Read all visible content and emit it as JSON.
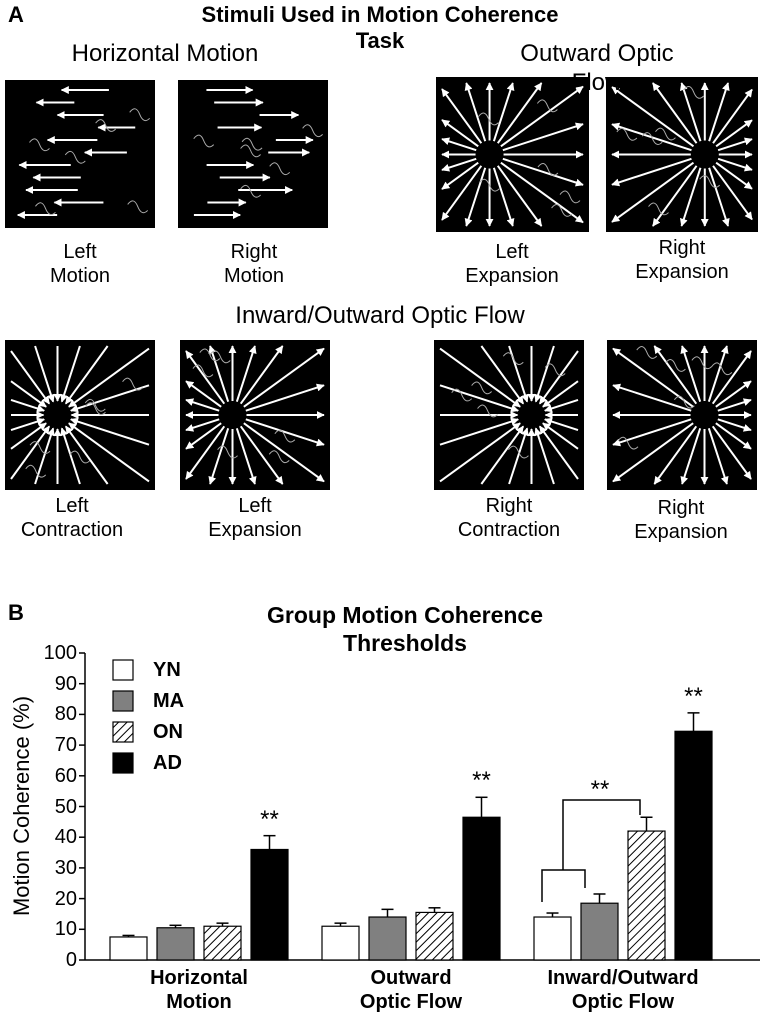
{
  "panel_a": {
    "label": "A",
    "title": "Stimuli Used in Motion Coherence Task",
    "groups": [
      "Horizontal Motion",
      "Outward Optic Flow",
      "Inward/Outward Optic Flow"
    ],
    "captions": [
      "Left\nMotion",
      "Right\nMotion",
      "Left\nExpansion",
      "Right\nExpansion",
      "Left\nContraction",
      "Left\nExpansion",
      "Right\nContraction",
      "Right\nExpansion"
    ]
  },
  "chart_data": {
    "type": "bar",
    "label": "B",
    "title": "Group Motion Coherence Thresholds",
    "y_label": "Motion Coherence (%)",
    "categories": [
      "Horizontal\nMotion",
      "Outward\nOptic Flow",
      "Inward/Outward\nOptic Flow"
    ],
    "series": [
      {
        "name": "YN",
        "color": "#ffffff",
        "values": [
          7.5,
          11,
          14
        ],
        "errors": [
          0.5,
          1,
          1.3
        ]
      },
      {
        "name": "MA",
        "color": "#808080",
        "values": [
          10.5,
          14,
          18.5
        ],
        "errors": [
          0.8,
          2.5,
          3
        ]
      },
      {
        "name": "ON",
        "color": "#000000",
        "pattern": "hatch",
        "values": [
          11,
          15.5,
          42
        ],
        "errors": [
          1,
          1.5,
          4.5
        ]
      },
      {
        "name": "AD",
        "color": "#000000",
        "values": [
          36,
          46.5,
          74.5
        ],
        "errors": [
          4.5,
          6.5,
          6
        ]
      }
    ],
    "annotations": [
      "**",
      "**",
      "**",
      "**"
    ],
    "ylim": [
      0,
      100
    ],
    "yticks": [
      0,
      10,
      20,
      30,
      40,
      50,
      60,
      70,
      80,
      90,
      100
    ],
    "legend": "upper-left"
  }
}
